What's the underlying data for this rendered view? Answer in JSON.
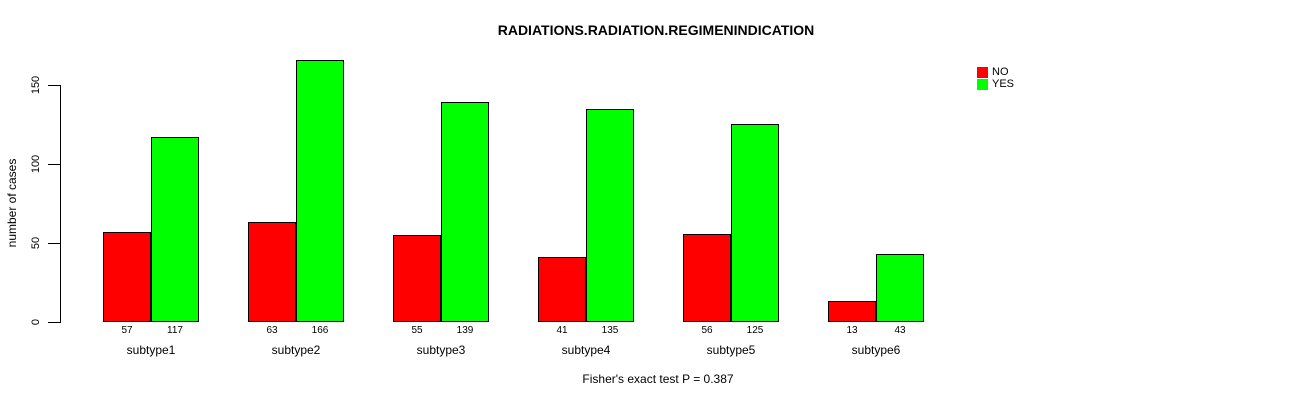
{
  "chart_data": {
    "type": "bar",
    "title": "RADIATIONS.RADIATION.REGIMENINDICATION",
    "ylabel": "number of cases",
    "xlabel": "",
    "annotation": "Fisher's exact test P = 0.387",
    "categories": [
      "subtype1",
      "subtype2",
      "subtype3",
      "subtype4",
      "subtype5",
      "subtype6"
    ],
    "series": [
      {
        "name": "NO",
        "color": "#ff0000",
        "values": [
          57,
          63,
          55,
          41,
          56,
          13
        ]
      },
      {
        "name": "YES",
        "color": "#00ff00",
        "values": [
          117,
          166,
          139,
          135,
          125,
          43
        ]
      }
    ],
    "bar_value_labels": [
      [
        "57",
        "117"
      ],
      [
        "63",
        "166"
      ],
      [
        "55",
        "139"
      ],
      [
        "41",
        "135"
      ],
      [
        "56",
        "125"
      ],
      [
        "13",
        "43"
      ]
    ],
    "yticks": [
      "0",
      "50",
      "100",
      "150"
    ],
    "ylim": [
      0,
      170
    ],
    "grid": false,
    "legend_position": "top-right",
    "colors": {
      "background": "#ffffff",
      "axis": "#000000",
      "text": "#000000"
    }
  }
}
